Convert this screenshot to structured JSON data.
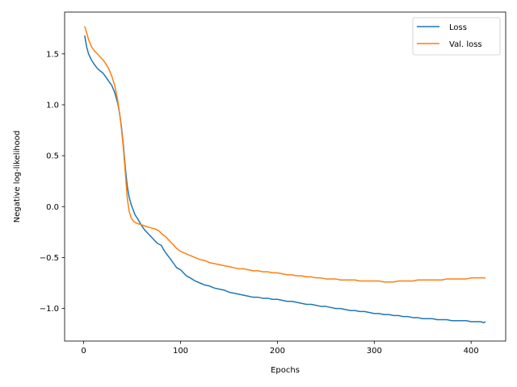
{
  "chart_data": {
    "type": "line",
    "title": "",
    "xlabel": "Epochs",
    "ylabel": "Negative log-likelihood",
    "xlim": [
      -19.7,
      435.7
    ],
    "ylim": [
      -1.32,
      1.91
    ],
    "x_ticks": [
      0,
      100,
      200,
      300,
      400
    ],
    "y_ticks": [
      -1.0,
      -0.5,
      0.0,
      0.5,
      1.0,
      1.5
    ],
    "grid": false,
    "legend_position": "top-right",
    "series": [
      {
        "name": "Loss",
        "color": "#1f77b4",
        "points": [
          [
            1,
            1.68
          ],
          [
            3,
            1.57
          ],
          [
            5,
            1.5
          ],
          [
            8,
            1.44
          ],
          [
            10,
            1.41
          ],
          [
            13,
            1.37
          ],
          [
            16,
            1.34
          ],
          [
            20,
            1.31
          ],
          [
            23,
            1.27
          ],
          [
            26,
            1.23
          ],
          [
            29,
            1.19
          ],
          [
            32,
            1.12
          ],
          [
            35,
            1.02
          ],
          [
            37,
            0.92
          ],
          [
            39,
            0.78
          ],
          [
            41,
            0.6
          ],
          [
            43,
            0.38
          ],
          [
            45,
            0.2
          ],
          [
            47,
            0.09
          ],
          [
            49,
            0.02
          ],
          [
            51,
            -0.03
          ],
          [
            53,
            -0.08
          ],
          [
            55,
            -0.11
          ],
          [
            57,
            -0.14
          ],
          [
            60,
            -0.19
          ],
          [
            63,
            -0.23
          ],
          [
            66,
            -0.26
          ],
          [
            70,
            -0.3
          ],
          [
            73,
            -0.33
          ],
          [
            76,
            -0.36
          ],
          [
            80,
            -0.38
          ],
          [
            83,
            -0.43
          ],
          [
            86,
            -0.47
          ],
          [
            90,
            -0.52
          ],
          [
            93,
            -0.56
          ],
          [
            96,
            -0.6
          ],
          [
            100,
            -0.62
          ],
          [
            103,
            -0.65
          ],
          [
            106,
            -0.68
          ],
          [
            110,
            -0.7
          ],
          [
            115,
            -0.73
          ],
          [
            120,
            -0.75
          ],
          [
            125,
            -0.77
          ],
          [
            130,
            -0.78
          ],
          [
            135,
            -0.8
          ],
          [
            140,
            -0.81
          ],
          [
            145,
            -0.82
          ],
          [
            150,
            -0.84
          ],
          [
            155,
            -0.85
          ],
          [
            160,
            -0.86
          ],
          [
            165,
            -0.87
          ],
          [
            170,
            -0.88
          ],
          [
            175,
            -0.89
          ],
          [
            180,
            -0.89
          ],
          [
            185,
            -0.9
          ],
          [
            190,
            -0.9
          ],
          [
            195,
            -0.91
          ],
          [
            200,
            -0.91
          ],
          [
            205,
            -0.92
          ],
          [
            210,
            -0.93
          ],
          [
            215,
            -0.93
          ],
          [
            220,
            -0.94
          ],
          [
            225,
            -0.95
          ],
          [
            230,
            -0.96
          ],
          [
            235,
            -0.96
          ],
          [
            240,
            -0.97
          ],
          [
            245,
            -0.98
          ],
          [
            250,
            -0.98
          ],
          [
            255,
            -0.99
          ],
          [
            260,
            -1.0
          ],
          [
            265,
            -1.0
          ],
          [
            270,
            -1.01
          ],
          [
            275,
            -1.02
          ],
          [
            280,
            -1.02
          ],
          [
            285,
            -1.03
          ],
          [
            290,
            -1.03
          ],
          [
            295,
            -1.04
          ],
          [
            300,
            -1.05
          ],
          [
            305,
            -1.05
          ],
          [
            310,
            -1.06
          ],
          [
            315,
            -1.06
          ],
          [
            320,
            -1.07
          ],
          [
            325,
            -1.07
          ],
          [
            330,
            -1.08
          ],
          [
            335,
            -1.08
          ],
          [
            340,
            -1.09
          ],
          [
            345,
            -1.09
          ],
          [
            350,
            -1.1
          ],
          [
            355,
            -1.1
          ],
          [
            360,
            -1.1
          ],
          [
            365,
            -1.11
          ],
          [
            370,
            -1.11
          ],
          [
            375,
            -1.11
          ],
          [
            380,
            -1.12
          ],
          [
            385,
            -1.12
          ],
          [
            390,
            -1.12
          ],
          [
            395,
            -1.12
          ],
          [
            400,
            -1.13
          ],
          [
            405,
            -1.13
          ],
          [
            410,
            -1.13
          ],
          [
            413,
            -1.14
          ],
          [
            415,
            -1.13
          ]
        ]
      },
      {
        "name": "Val. loss",
        "color": "#ff7f0e",
        "points": [
          [
            1,
            1.77
          ],
          [
            3,
            1.71
          ],
          [
            5,
            1.64
          ],
          [
            8,
            1.57
          ],
          [
            11,
            1.53
          ],
          [
            14,
            1.5
          ],
          [
            17,
            1.47
          ],
          [
            20,
            1.44
          ],
          [
            23,
            1.4
          ],
          [
            26,
            1.35
          ],
          [
            29,
            1.28
          ],
          [
            32,
            1.19
          ],
          [
            35,
            1.05
          ],
          [
            37,
            0.92
          ],
          [
            39,
            0.76
          ],
          [
            41,
            0.57
          ],
          [
            43,
            0.33
          ],
          [
            45,
            0.08
          ],
          [
            47,
            -0.05
          ],
          [
            49,
            -0.11
          ],
          [
            51,
            -0.14
          ],
          [
            54,
            -0.16
          ],
          [
            57,
            -0.17
          ],
          [
            60,
            -0.18
          ],
          [
            63,
            -0.19
          ],
          [
            66,
            -0.2
          ],
          [
            70,
            -0.21
          ],
          [
            74,
            -0.22
          ],
          [
            78,
            -0.24
          ],
          [
            81,
            -0.27
          ],
          [
            84,
            -0.29
          ],
          [
            87,
            -0.32
          ],
          [
            90,
            -0.35
          ],
          [
            93,
            -0.38
          ],
          [
            96,
            -0.41
          ],
          [
            100,
            -0.44
          ],
          [
            105,
            -0.46
          ],
          [
            110,
            -0.48
          ],
          [
            115,
            -0.5
          ],
          [
            120,
            -0.52
          ],
          [
            125,
            -0.53
          ],
          [
            130,
            -0.55
          ],
          [
            135,
            -0.56
          ],
          [
            140,
            -0.57
          ],
          [
            145,
            -0.58
          ],
          [
            150,
            -0.59
          ],
          [
            155,
            -0.6
          ],
          [
            160,
            -0.61
          ],
          [
            165,
            -0.61
          ],
          [
            170,
            -0.62
          ],
          [
            175,
            -0.63
          ],
          [
            180,
            -0.63
          ],
          [
            185,
            -0.64
          ],
          [
            190,
            -0.64
          ],
          [
            195,
            -0.65
          ],
          [
            200,
            -0.65
          ],
          [
            205,
            -0.66
          ],
          [
            210,
            -0.67
          ],
          [
            215,
            -0.67
          ],
          [
            220,
            -0.68
          ],
          [
            225,
            -0.68
          ],
          [
            230,
            -0.69
          ],
          [
            235,
            -0.69
          ],
          [
            240,
            -0.7
          ],
          [
            245,
            -0.7
          ],
          [
            250,
            -0.71
          ],
          [
            255,
            -0.71
          ],
          [
            260,
            -0.71
          ],
          [
            265,
            -0.72
          ],
          [
            270,
            -0.72
          ],
          [
            275,
            -0.72
          ],
          [
            280,
            -0.72
          ],
          [
            285,
            -0.73
          ],
          [
            290,
            -0.73
          ],
          [
            295,
            -0.73
          ],
          [
            300,
            -0.73
          ],
          [
            305,
            -0.73
          ],
          [
            310,
            -0.74
          ],
          [
            315,
            -0.74
          ],
          [
            320,
            -0.74
          ],
          [
            325,
            -0.73
          ],
          [
            330,
            -0.73
          ],
          [
            335,
            -0.73
          ],
          [
            340,
            -0.73
          ],
          [
            345,
            -0.72
          ],
          [
            350,
            -0.72
          ],
          [
            355,
            -0.72
          ],
          [
            360,
            -0.72
          ],
          [
            365,
            -0.72
          ],
          [
            370,
            -0.72
          ],
          [
            375,
            -0.71
          ],
          [
            380,
            -0.71
          ],
          [
            385,
            -0.71
          ],
          [
            390,
            -0.71
          ],
          [
            395,
            -0.71
          ],
          [
            400,
            -0.7
          ],
          [
            405,
            -0.7
          ],
          [
            410,
            -0.7
          ],
          [
            415,
            -0.7
          ]
        ]
      }
    ]
  }
}
